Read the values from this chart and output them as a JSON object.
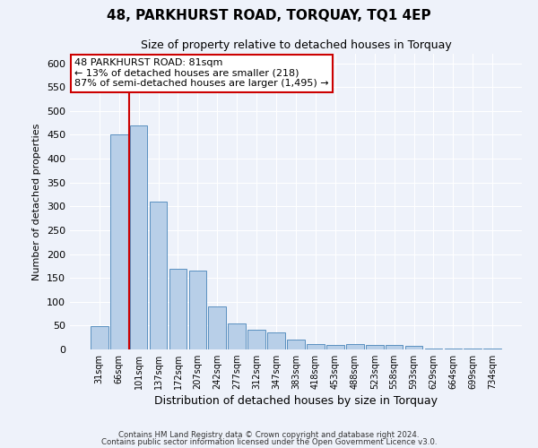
{
  "title": "48, PARKHURST ROAD, TORQUAY, TQ1 4EP",
  "subtitle": "Size of property relative to detached houses in Torquay",
  "xlabel": "Distribution of detached houses by size in Torquay",
  "ylabel": "Number of detached properties",
  "categories": [
    "31sqm",
    "66sqm",
    "101sqm",
    "137sqm",
    "172sqm",
    "207sqm",
    "242sqm",
    "277sqm",
    "312sqm",
    "347sqm",
    "383sqm",
    "418sqm",
    "453sqm",
    "488sqm",
    "523sqm",
    "558sqm",
    "593sqm",
    "629sqm",
    "664sqm",
    "699sqm",
    "734sqm"
  ],
  "values": [
    48,
    450,
    470,
    310,
    170,
    165,
    90,
    55,
    42,
    35,
    20,
    12,
    10,
    12,
    10,
    10,
    8,
    2,
    2,
    2,
    2
  ],
  "bar_color": "#b8cfe8",
  "bar_edge_color": "#5a90c0",
  "vline_x_index": 1.5,
  "vline_color": "#cc0000",
  "annotation_text": "48 PARKHURST ROAD: 81sqm\n← 13% of detached houses are smaller (218)\n87% of semi-detached houses are larger (1,495) →",
  "annotation_box_color": "#ffffff",
  "annotation_border_color": "#cc0000",
  "ylim": [
    0,
    620
  ],
  "yticks": [
    0,
    50,
    100,
    150,
    200,
    250,
    300,
    350,
    400,
    450,
    500,
    550,
    600
  ],
  "background_color": "#eef2fa",
  "grid_color": "#ffffff",
  "footer_line1": "Contains HM Land Registry data © Crown copyright and database right 2024.",
  "footer_line2": "Contains public sector information licensed under the Open Government Licence v3.0."
}
